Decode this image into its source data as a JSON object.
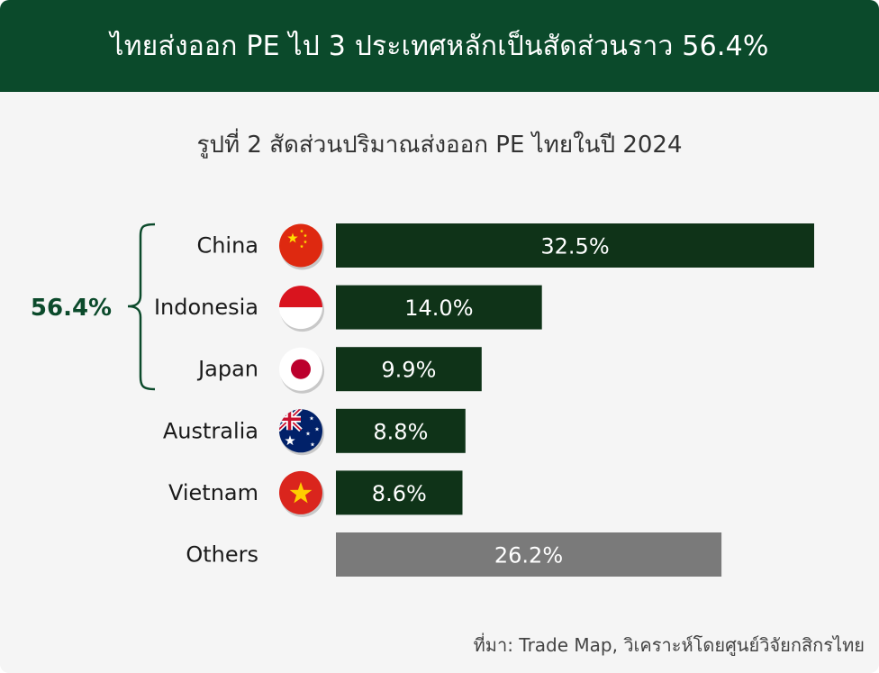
{
  "header": {
    "title": "ไทยส่งออก PE ไป 3 ประเทศหลักเป็นสัดส่วนราว  56.4%"
  },
  "subtitle": "รูปที่ 2 สัดส่วนปริมาณส่งออก PE ไทยในปี 2024",
  "source": "ที่มา: Trade Map, วิเคราะห์โดยศูนย์วิจัยกสิกรไทย",
  "bracket_label": "56.4%",
  "colors": {
    "header_bg": "#0b4a2b",
    "bar_main": "#0f3318",
    "bar_other": "#7a7a7a",
    "bracket": "#0b4a2b"
  },
  "chart_data": {
    "type": "bar",
    "orientation": "horizontal",
    "categories": [
      "China",
      "Indonesia",
      "Japan",
      "Australia",
      "Vietnam",
      "Others"
    ],
    "values": [
      32.5,
      14.0,
      9.9,
      8.8,
      8.6,
      26.2
    ],
    "value_labels": [
      "32.5%",
      "14.0%",
      "9.9%",
      "8.8%",
      "8.6%",
      "26.2%"
    ],
    "flags": [
      "china-flag-icon",
      "indonesia-flag-icon",
      "japan-flag-icon",
      "australia-flag-icon",
      "vietnam-flag-icon",
      ""
    ],
    "title": "รูปที่ 2 สัดส่วนปริมาณส่งออก PE ไทยในปี 2024",
    "xlabel": "",
    "ylabel": "",
    "xlim": [
      0,
      32.5
    ],
    "grid": false,
    "legend": "none"
  }
}
